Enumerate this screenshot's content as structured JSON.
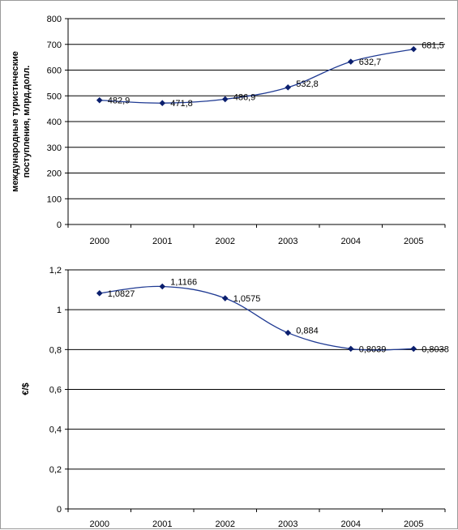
{
  "chart_data": [
    {
      "type": "line",
      "title": "",
      "xlabel": "",
      "ylabel": [
        "международные туристические",
        "поступления, млрд.долл."
      ],
      "categories": [
        "2000",
        "2001",
        "2002",
        "2003",
        "2004",
        "2005"
      ],
      "series": [
        {
          "values": [
            482.9,
            471.8,
            486.9,
            532.8,
            632.7,
            681.5
          ],
          "data_labels": [
            "482,9",
            "471,8",
            "486,9",
            "532,8",
            "632,7",
            "681,5"
          ]
        }
      ],
      "ylim": [
        0,
        800
      ],
      "yticks": [
        0,
        100,
        200,
        300,
        400,
        500,
        600,
        700,
        800
      ],
      "ytick_labels": [
        "0",
        "100",
        "200",
        "300",
        "400",
        "500",
        "600",
        "700",
        "800"
      ],
      "grid": true,
      "legend": "none",
      "line_color": "#1f3a93",
      "marker": "diamond"
    },
    {
      "type": "line",
      "title": "",
      "xlabel": "",
      "ylabel": [
        "€/$"
      ],
      "categories": [
        "2000",
        "2001",
        "2002",
        "2003",
        "2004",
        "2005"
      ],
      "series": [
        {
          "values": [
            1.0827,
            1.1166,
            1.0575,
            0.884,
            0.8039,
            0.8038
          ],
          "data_labels": [
            "1,0827",
            "1,1166",
            "1,0575",
            "0,884",
            "0,8039",
            "0,8038"
          ]
        }
      ],
      "ylim": [
        0,
        1.2
      ],
      "yticks": [
        0,
        0.2,
        0.4,
        0.6,
        0.8,
        1.0,
        1.2
      ],
      "ytick_labels": [
        "0",
        "0,2",
        "0,4",
        "0,6",
        "0,8",
        "1",
        "1,2"
      ],
      "grid": true,
      "legend": "none",
      "line_color": "#1f3a93",
      "marker": "diamond"
    }
  ]
}
